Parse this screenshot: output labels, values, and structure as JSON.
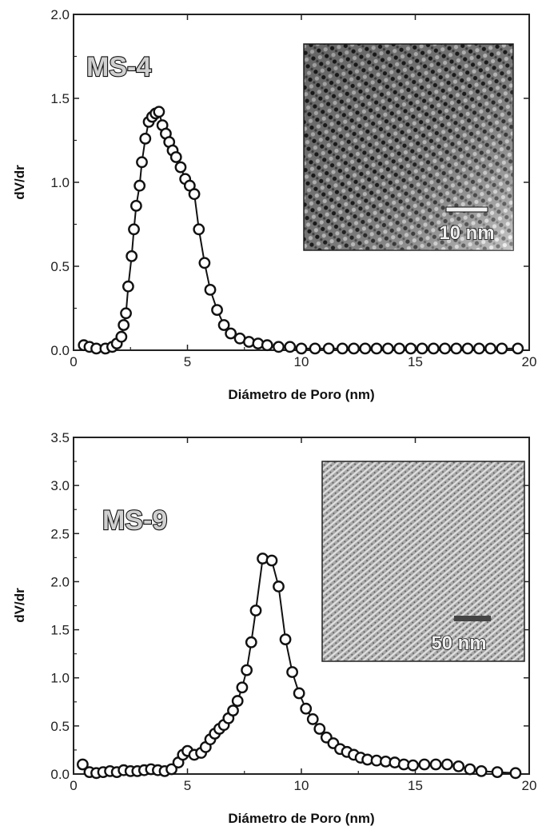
{
  "chart_data": [
    {
      "type": "scatter",
      "panel_label": "MS-4",
      "xlabel": "Diámetro de Poro (nm)",
      "ylabel": "dV/dr",
      "xlim": [
        0,
        20
      ],
      "ylim": [
        0,
        2.0
      ],
      "xticks": [
        0,
        5,
        10,
        15,
        20
      ],
      "xtick_labels": [
        "0",
        "5",
        "10",
        "15",
        "20"
      ],
      "yticks": [
        0,
        0.5,
        1.0,
        1.5,
        2.0
      ],
      "ytick_labels": [
        "0.0",
        "0.5",
        "1.0",
        "1.5",
        "2.0"
      ],
      "line_connected": true,
      "inset": {
        "scale_bar_label": "10 nm",
        "texture": "coarse"
      },
      "x": [
        0.45,
        0.7,
        1.0,
        1.4,
        1.7,
        1.9,
        2.1,
        2.2,
        2.3,
        2.4,
        2.55,
        2.65,
        2.75,
        2.9,
        3.0,
        3.15,
        3.3,
        3.45,
        3.6,
        3.75,
        3.9,
        4.05,
        4.2,
        4.35,
        4.5,
        4.7,
        4.9,
        5.1,
        5.3,
        5.5,
        5.75,
        6.0,
        6.3,
        6.6,
        6.9,
        7.3,
        7.7,
        8.1,
        8.5,
        9.0,
        9.5,
        10.0,
        10.6,
        11.2,
        11.8,
        12.3,
        12.8,
        13.3,
        13.8,
        14.3,
        14.8,
        15.3,
        15.8,
        16.3,
        16.8,
        17.3,
        17.8,
        18.3,
        18.8,
        19.5
      ],
      "y": [
        0.03,
        0.02,
        0.01,
        0.01,
        0.02,
        0.04,
        0.08,
        0.15,
        0.22,
        0.38,
        0.56,
        0.72,
        0.86,
        0.98,
        1.12,
        1.26,
        1.36,
        1.39,
        1.41,
        1.42,
        1.34,
        1.29,
        1.24,
        1.19,
        1.15,
        1.09,
        1.02,
        0.98,
        0.93,
        0.72,
        0.52,
        0.36,
        0.24,
        0.15,
        0.1,
        0.07,
        0.05,
        0.04,
        0.03,
        0.02,
        0.02,
        0.01,
        0.01,
        0.01,
        0.01,
        0.01,
        0.01,
        0.01,
        0.01,
        0.01,
        0.01,
        0.01,
        0.01,
        0.01,
        0.01,
        0.01,
        0.01,
        0.01,
        0.01,
        0.01
      ]
    },
    {
      "type": "scatter",
      "panel_label": "MS-9",
      "xlabel": "Diámetro de Poro (nm)",
      "ylabel": "dV/dr",
      "xlim": [
        0,
        20
      ],
      "ylim": [
        0,
        3.5
      ],
      "xticks": [
        0,
        5,
        10,
        15,
        20
      ],
      "xtick_labels": [
        "0",
        "5",
        "10",
        "15",
        "20"
      ],
      "yticks": [
        0,
        0.5,
        1.0,
        1.5,
        2.0,
        2.5,
        3.0,
        3.5
      ],
      "ytick_labels": [
        "0.0",
        "0.5",
        "1.0",
        "1.5",
        "2.0",
        "2.5",
        "3.0",
        "3.5"
      ],
      "line_connected": true,
      "inset": {
        "scale_bar_label": "50 nm",
        "texture": "fine"
      },
      "x": [
        0.4,
        0.7,
        1.0,
        1.3,
        1.6,
        1.9,
        2.2,
        2.5,
        2.8,
        3.1,
        3.4,
        3.7,
        4.0,
        4.3,
        4.6,
        4.8,
        5.0,
        5.3,
        5.6,
        5.8,
        6.0,
        6.2,
        6.4,
        6.6,
        6.8,
        7.0,
        7.2,
        7.4,
        7.6,
        7.8,
        8.0,
        8.3,
        8.7,
        9.0,
        9.3,
        9.6,
        9.9,
        10.2,
        10.5,
        10.8,
        11.1,
        11.4,
        11.7,
        12.0,
        12.3,
        12.6,
        12.9,
        13.3,
        13.7,
        14.1,
        14.5,
        14.9,
        15.4,
        15.9,
        16.4,
        16.9,
        17.4,
        17.9,
        18.6,
        19.4
      ],
      "y": [
        0.1,
        0.02,
        0.01,
        0.02,
        0.03,
        0.02,
        0.04,
        0.03,
        0.03,
        0.04,
        0.05,
        0.04,
        0.03,
        0.05,
        0.12,
        0.2,
        0.24,
        0.2,
        0.22,
        0.28,
        0.36,
        0.42,
        0.47,
        0.51,
        0.58,
        0.66,
        0.76,
        0.9,
        1.08,
        1.37,
        1.7,
        2.24,
        2.22,
        1.95,
        1.4,
        1.06,
        0.84,
        0.68,
        0.57,
        0.47,
        0.38,
        0.32,
        0.26,
        0.23,
        0.2,
        0.17,
        0.15,
        0.14,
        0.13,
        0.12,
        0.1,
        0.09,
        0.1,
        0.1,
        0.1,
        0.08,
        0.05,
        0.03,
        0.02,
        0.01
      ]
    }
  ]
}
